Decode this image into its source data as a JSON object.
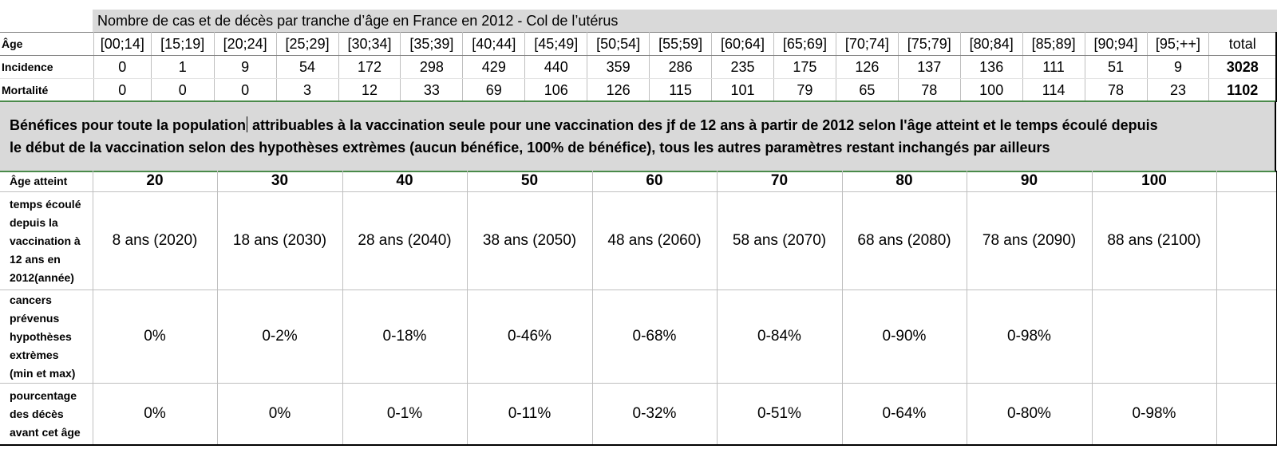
{
  "incidence_table": {
    "title": "Nombre de cas et de décès par tranche d’âge en France en 2012 - Col de l’utérus",
    "age_label": "Âge",
    "age_groups": [
      "[00;14]",
      "[15;19]",
      "[20;24]",
      "[25;29]",
      "[30;34]",
      "[35;39]",
      "[40;44]",
      "[45;49]",
      "[50;54]",
      "[55;59]",
      "[60;64]",
      "[65;69]",
      "[70;74]",
      "[75;79]",
      "[80;84]",
      "[85;89]",
      "[90;94]",
      "[95;++]",
      "total"
    ],
    "rows": [
      {
        "label": "Incidence",
        "values": [
          "0",
          "1",
          "9",
          "54",
          "172",
          "298",
          "429",
          "440",
          "359",
          "286",
          "235",
          "175",
          "126",
          "137",
          "136",
          "111",
          "51",
          "9",
          "3028"
        ]
      },
      {
        "label": "Mortalité",
        "values": [
          "0",
          "0",
          "0",
          "3",
          "12",
          "33",
          "69",
          "106",
          "126",
          "115",
          "101",
          "79",
          "65",
          "78",
          "100",
          "114",
          "78",
          "23",
          "1102"
        ]
      }
    ]
  },
  "benefits_header": {
    "line1_part1": "Bénéfices pour toute la population",
    "line1_part2": " attribuables à la vaccination seule pour une vaccination des jf de 12 ans à partir de 2012  selon l'âge atteint et le temps écoulé depuis",
    "line2": "le début de la vaccination selon des hypothèses extrèmes (aucun bénéfice, 100% de bénéfice), tous les autres paramètres restant inchangés par ailleurs"
  },
  "benefits_table": {
    "age_label": "Âge atteint",
    "ages": [
      "20",
      "30",
      "40",
      "50",
      "60",
      "70",
      "80",
      "90",
      "100",
      ""
    ],
    "rows": [
      {
        "label": [
          "temps écoulé",
          "depuis la",
          "vaccination à",
          "12 ans en",
          "2012(année)"
        ],
        "values": [
          "8 ans (2020)",
          "18 ans (2030)",
          "28 ans (2040)",
          "38 ans (2050)",
          "48 ans (2060)",
          "58 ans (2070)",
          "68 ans (2080)",
          "78 ans (2090)",
          "88 ans (2100)",
          ""
        ]
      },
      {
        "label": [
          "cancers",
          "prévenus",
          "hypothèses",
          "extrèmes",
          "(min et max)"
        ],
        "values": [
          "0%",
          "0-2%",
          "0-18%",
          "0-46%",
          "0-68%",
          "0-84%",
          "0-90%",
          "0-98%",
          "",
          ""
        ]
      },
      {
        "label": [
          "pourcentage",
          "des décès",
          "avant cet âge"
        ],
        "values": [
          "0%",
          "0%",
          "0-1%",
          "0-11%",
          "0-32%",
          "0-51%",
          "0-64%",
          "0-80%",
          "0-98%",
          ""
        ]
      }
    ]
  }
}
